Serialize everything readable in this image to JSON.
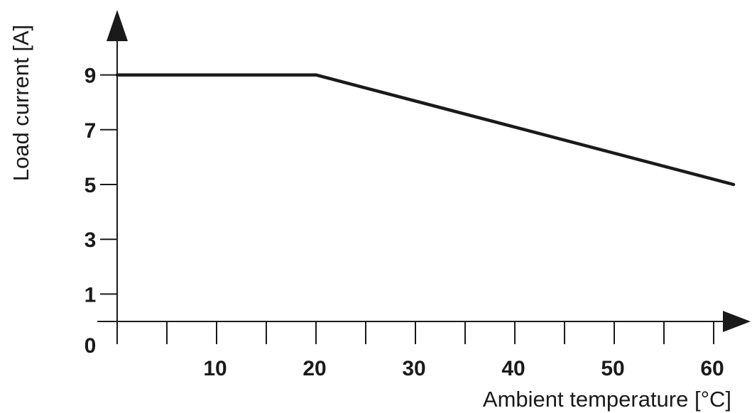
{
  "chart_data": {
    "type": "line",
    "xlabel": "Ambient temperature [°C]",
    "ylabel": "Load current [A]",
    "xlim": [
      0,
      62
    ],
    "ylim": [
      0,
      10
    ],
    "origin_label": "0",
    "x_tick_labels": [
      {
        "value": 10,
        "label": "10"
      },
      {
        "value": 20,
        "label": "20"
      },
      {
        "value": 30,
        "label": "30"
      },
      {
        "value": 40,
        "label": "40"
      },
      {
        "value": 50,
        "label": "50"
      },
      {
        "value": 60,
        "label": "60"
      }
    ],
    "x_minor_ticks": [
      5,
      10,
      15,
      20,
      25,
      30,
      35,
      40,
      45,
      50,
      55,
      60
    ],
    "y_tick_labels": [
      {
        "value": 1,
        "label": "1"
      },
      {
        "value": 3,
        "label": "3"
      },
      {
        "value": 5,
        "label": "5"
      },
      {
        "value": 7,
        "label": "7"
      },
      {
        "value": 9,
        "label": "9"
      }
    ],
    "grid": false,
    "legend": "none",
    "series": [
      {
        "x": [
          0,
          20,
          62
        ],
        "y": [
          9,
          9,
          5
        ]
      }
    ]
  }
}
